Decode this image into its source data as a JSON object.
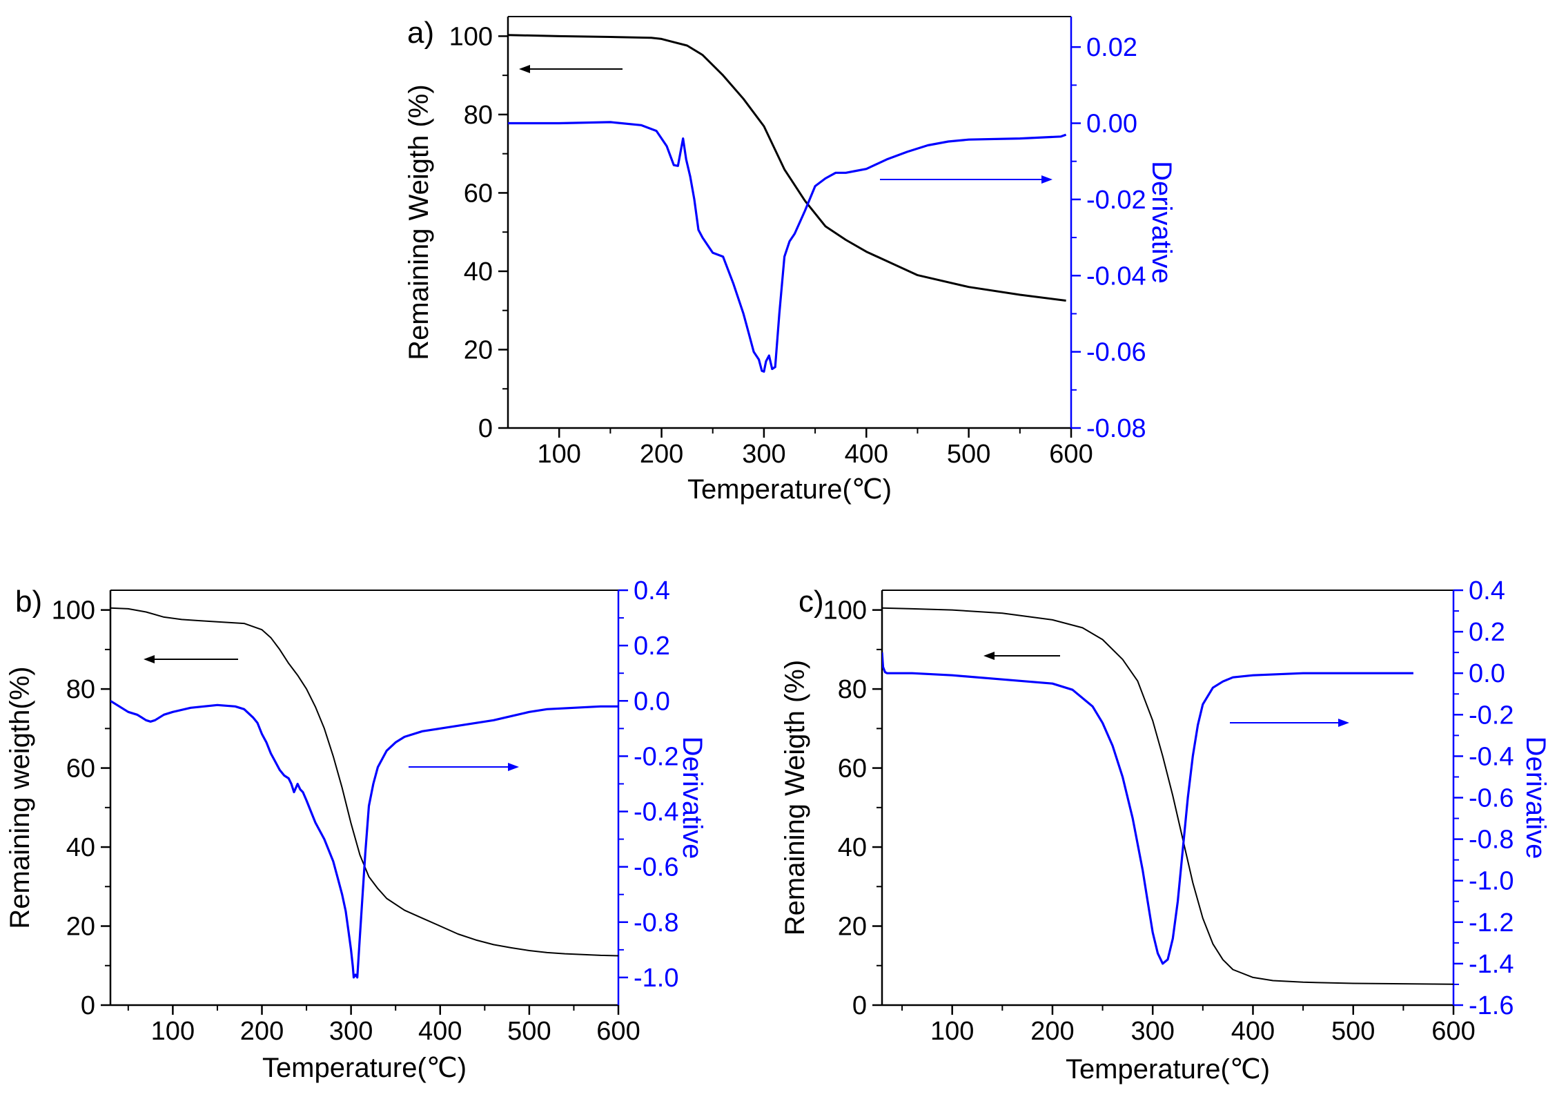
{
  "colors": {
    "weight": "#000000",
    "derivative": "#0000ff",
    "background": "#ffffff"
  },
  "chart_data": [
    {
      "panel_label": "a)",
      "type": "line",
      "xlabel": "Temperature(℃)",
      "ylabel": "Remaining Weigth (%)",
      "y2label": "Derivative",
      "xlim": [
        50,
        600
      ],
      "ylim": [
        0,
        105
      ],
      "y2lim": [
        -0.08,
        0.028
      ],
      "xticks": [
        "100",
        "200",
        "300",
        "400",
        "500",
        "600"
      ],
      "yticks": [
        "0",
        "20",
        "40",
        "60",
        "80",
        "100"
      ],
      "y2ticks": [
        "-0.08",
        "-0.06",
        "-0.04",
        "-0.02",
        "0.00",
        "0.02"
      ],
      "annotations": [
        "left arrow points to Remaining Weigth axis",
        "right arrow points to Derivative axis"
      ],
      "series": [
        {
          "name": "Remaining weight",
          "axis": "left",
          "x": [
            50,
            100,
            150,
            190,
            200,
            210,
            225,
            240,
            260,
            280,
            300,
            320,
            340,
            360,
            380,
            400,
            450,
            500,
            550,
            595
          ],
          "y": [
            100.3,
            100,
            99.8,
            99.6,
            99.3,
            98.6,
            97.6,
            95.2,
            90,
            84,
            77,
            66,
            58,
            51.5,
            48,
            45,
            39,
            36,
            34,
            32.5
          ]
        },
        {
          "name": "Derivative",
          "axis": "right",
          "x": [
            50,
            100,
            150,
            180,
            195,
            205,
            212,
            216,
            221,
            224,
            228,
            232,
            236,
            240,
            250,
            260,
            270,
            280,
            285,
            290,
            295,
            298,
            300,
            302,
            305,
            308,
            311,
            315,
            320,
            325,
            330,
            340,
            350,
            360,
            370,
            380,
            390,
            400,
            420,
            440,
            460,
            480,
            500,
            550,
            590,
            595
          ],
          "y": [
            0,
            0,
            0.0003,
            -0.0005,
            -0.002,
            -0.006,
            -0.011,
            -0.0112,
            -0.004,
            -0.0095,
            -0.014,
            -0.02,
            -0.028,
            -0.03,
            -0.034,
            -0.035,
            -0.042,
            -0.05,
            -0.055,
            -0.06,
            -0.062,
            -0.065,
            -0.0652,
            -0.0625,
            -0.061,
            -0.0645,
            -0.064,
            -0.05,
            -0.035,
            -0.031,
            -0.029,
            -0.023,
            -0.0165,
            -0.0145,
            -0.013,
            -0.013,
            -0.0125,
            -0.012,
            -0.0095,
            -0.0075,
            -0.0058,
            -0.0048,
            -0.0043,
            -0.004,
            -0.0035,
            -0.003
          ]
        }
      ]
    },
    {
      "panel_label": "b)",
      "type": "line",
      "xlabel": "Temperature(℃)",
      "ylabel": "Remaining weigth(%)",
      "y2label": "Derivative",
      "xlim": [
        30,
        600
      ],
      "ylim": [
        0,
        105
      ],
      "y2lim": [
        -1.1,
        0.4
      ],
      "xticks": [
        "100",
        "200",
        "300",
        "400",
        "500",
        "600"
      ],
      "yticks": [
        "0",
        "20",
        "40",
        "60",
        "80",
        "100"
      ],
      "y2ticks": [
        "-1.0",
        "-0.8",
        "-0.6",
        "-0.4",
        "-0.2",
        "0.0",
        "0.2",
        "0.4"
      ],
      "annotations": [
        "left arrow points to Remaining weigth axis",
        "right arrow points to Derivative axis"
      ],
      "series": [
        {
          "name": "Remaining weight",
          "axis": "left",
          "x": [
            30,
            50,
            70,
            90,
            110,
            130,
            150,
            180,
            200,
            210,
            220,
            230,
            240,
            250,
            260,
            270,
            280,
            290,
            300,
            310,
            320,
            330,
            340,
            360,
            380,
            400,
            420,
            440,
            460,
            480,
            500,
            520,
            540,
            560,
            580,
            600
          ],
          "y": [
            100.5,
            100.3,
            99.5,
            98.2,
            97.6,
            97.3,
            97,
            96.6,
            95,
            93,
            90,
            86.5,
            83.5,
            80,
            75.5,
            70,
            63,
            55,
            46,
            38,
            32.5,
            29.5,
            27,
            24,
            22,
            20,
            18,
            16.5,
            15.3,
            14.5,
            13.8,
            13.3,
            13,
            12.8,
            12.6,
            12.5
          ]
        },
        {
          "name": "Derivative",
          "axis": "right",
          "x": [
            30,
            40,
            50,
            60,
            65,
            70,
            75,
            80,
            90,
            100,
            120,
            150,
            170,
            180,
            190,
            195,
            200,
            205,
            210,
            215,
            220,
            225,
            230,
            233,
            236,
            240,
            243,
            246,
            250,
            255,
            260,
            270,
            280,
            285,
            290,
            294,
            297,
            300,
            302,
            303,
            305,
            307,
            310,
            313,
            316,
            320,
            325,
            330,
            340,
            350,
            360,
            380,
            400,
            420,
            440,
            460,
            480,
            500,
            520,
            550,
            580,
            600
          ],
          "y": [
            0,
            -0.02,
            -0.04,
            -0.05,
            -0.06,
            -0.07,
            -0.075,
            -0.07,
            -0.05,
            -0.04,
            -0.025,
            -0.015,
            -0.02,
            -0.03,
            -0.06,
            -0.08,
            -0.12,
            -0.15,
            -0.19,
            -0.22,
            -0.25,
            -0.27,
            -0.28,
            -0.3,
            -0.33,
            -0.3,
            -0.32,
            -0.33,
            -0.36,
            -0.4,
            -0.44,
            -0.5,
            -0.58,
            -0.64,
            -0.7,
            -0.76,
            -0.83,
            -0.9,
            -0.96,
            -1.0,
            -0.99,
            -1.0,
            -0.85,
            -0.7,
            -0.55,
            -0.38,
            -0.3,
            -0.24,
            -0.18,
            -0.15,
            -0.13,
            -0.11,
            -0.1,
            -0.09,
            -0.08,
            -0.07,
            -0.055,
            -0.04,
            -0.03,
            -0.025,
            -0.02,
            -0.02
          ]
        }
      ]
    },
    {
      "panel_label": "c)",
      "type": "line",
      "xlabel": "Temperature(℃)",
      "ylabel": "Remaining Weigth (%)",
      "y2label": "Derivative",
      "xlim": [
        30,
        600
      ],
      "ylim": [
        0,
        105
      ],
      "y2lim": [
        -1.6,
        0.4
      ],
      "xticks": [
        "100",
        "200",
        "300",
        "400",
        "500",
        "600"
      ],
      "yticks": [
        "0",
        "20",
        "40",
        "60",
        "80",
        "100"
      ],
      "y2ticks": [
        "-1.6",
        "-1.4",
        "-1.2",
        "-1.0",
        "-0.8",
        "-0.6",
        "-0.4",
        "-0.2",
        "0.0",
        "0.2",
        "0.4"
      ],
      "annotations": [
        "left arrow points to Remaining Weigth axis",
        "right arrow points to Derivative axis"
      ],
      "series": [
        {
          "name": "Remaining weight",
          "axis": "left",
          "x": [
            30,
            60,
            100,
            150,
            200,
            230,
            250,
            270,
            285,
            300,
            310,
            320,
            330,
            340,
            350,
            360,
            370,
            380,
            400,
            420,
            450,
            500,
            550,
            600
          ],
          "y": [
            100.5,
            100.3,
            100,
            99.2,
            97.5,
            95.5,
            92.5,
            87.5,
            82,
            72,
            63,
            53,
            42,
            31,
            22,
            15.5,
            11.5,
            9,
            7,
            6.2,
            5.8,
            5.5,
            5.4,
            5.3
          ]
        },
        {
          "name": "Derivative",
          "axis": "right",
          "x": [
            30,
            31,
            33,
            35,
            40,
            60,
            100,
            150,
            200,
            220,
            240,
            250,
            260,
            270,
            280,
            290,
            295,
            300,
            305,
            310,
            315,
            320,
            325,
            330,
            335,
            340,
            345,
            350,
            360,
            370,
            380,
            400,
            450,
            500,
            560
          ],
          "y": [
            0.1,
            0.03,
            0.005,
            0,
            0,
            0,
            -0.01,
            -0.03,
            -0.05,
            -0.08,
            -0.16,
            -0.24,
            -0.35,
            -0.5,
            -0.7,
            -0.95,
            -1.1,
            -1.25,
            -1.35,
            -1.4,
            -1.38,
            -1.28,
            -1.1,
            -0.85,
            -0.6,
            -0.4,
            -0.25,
            -0.15,
            -0.07,
            -0.04,
            -0.02,
            -0.01,
            0,
            0,
            0
          ]
        }
      ]
    }
  ]
}
